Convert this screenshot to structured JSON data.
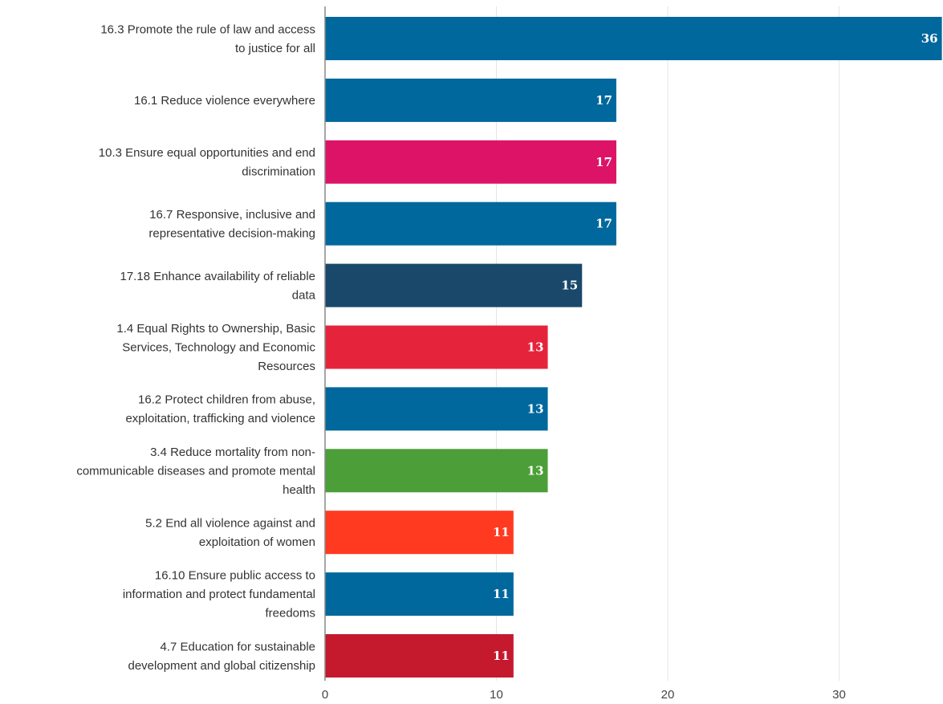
{
  "chart_data": {
    "type": "bar",
    "orientation": "horizontal",
    "categories": [
      [
        "16.3  Promote the rule of law and access",
        "to justice for all"
      ],
      [
        "16.1  Reduce violence everywhere"
      ],
      [
        "10.3  Ensure equal opportunities and end",
        "discrimination"
      ],
      [
        "16.7  Responsive, inclusive and",
        "representative decision-making"
      ],
      [
        "17.18  Enhance availability of reliable",
        "data"
      ],
      [
        "1.4  Equal Rights to Ownership, Basic",
        "Services, Technology and Economic",
        "Resources"
      ],
      [
        "16.2  Protect children from abuse,",
        "exploitation, trafficking and violence"
      ],
      [
        "3.4  Reduce mortality from non-",
        "communicable diseases and promote mental",
        "health"
      ],
      [
        "5.2  End all violence against and",
        "exploitation of women"
      ],
      [
        "16.10  Ensure public access to",
        "information and protect fundamental",
        "freedoms"
      ],
      [
        "4.7  Education for sustainable",
        "development and global citizenship"
      ]
    ],
    "values": [
      36,
      17,
      17,
      17,
      15,
      13,
      13,
      13,
      11,
      11,
      11
    ],
    "colors": [
      "#00689d",
      "#00689d",
      "#dd1367",
      "#00689d",
      "#19486a",
      "#e5243b",
      "#00689d",
      "#4c9f38",
      "#ff3a21",
      "#00689d",
      "#c5192d"
    ],
    "value_labels": [
      "36",
      "17",
      "17",
      "17",
      "15",
      "13",
      "13",
      "13",
      "11",
      "11",
      "11"
    ],
    "x_ticks": [
      0,
      10,
      20,
      30
    ],
    "x_tick_labels": [
      "0",
      "10",
      "20",
      "30"
    ],
    "xlim": [
      0,
      36.3
    ],
    "grid": true,
    "title": "",
    "xlabel": "",
    "ylabel": ""
  }
}
